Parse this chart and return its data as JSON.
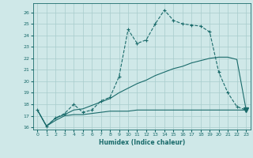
{
  "xlabel": "Humidex (Indice chaleur)",
  "background_color": "#cfe8e8",
  "grid_color": "#a8cccc",
  "line_color": "#1a6b6b",
  "xlim": [
    -0.5,
    23.5
  ],
  "ylim": [
    15.8,
    26.8
  ],
  "yticks": [
    16,
    17,
    18,
    19,
    20,
    21,
    22,
    23,
    24,
    25,
    26
  ],
  "xticks": [
    0,
    1,
    2,
    3,
    4,
    5,
    6,
    7,
    8,
    9,
    10,
    11,
    12,
    13,
    14,
    15,
    16,
    17,
    18,
    19,
    20,
    21,
    22,
    23
  ],
  "series1_x": [
    0,
    1,
    2,
    3,
    4,
    5,
    6,
    7,
    8,
    9,
    10,
    11,
    12,
    13,
    14,
    15,
    16,
    17,
    18,
    19,
    20,
    21,
    22,
    23
  ],
  "series1_y": [
    17.5,
    16.1,
    16.6,
    17.0,
    17.1,
    17.1,
    17.2,
    17.3,
    17.4,
    17.4,
    17.4,
    17.5,
    17.5,
    17.5,
    17.5,
    17.5,
    17.5,
    17.5,
    17.5,
    17.5,
    17.5,
    17.5,
    17.5,
    17.5
  ],
  "series2_x": [
    0,
    1,
    2,
    3,
    4,
    5,
    6,
    7,
    8,
    9,
    10,
    11,
    12,
    13,
    14,
    15,
    16,
    17,
    18,
    19,
    20,
    21,
    22,
    23
  ],
  "series2_y": [
    17.5,
    16.1,
    16.8,
    17.1,
    17.5,
    17.6,
    17.9,
    18.2,
    18.5,
    19.0,
    19.4,
    19.8,
    20.1,
    20.5,
    20.8,
    21.1,
    21.3,
    21.6,
    21.8,
    22.0,
    22.1,
    22.1,
    21.9,
    17.6
  ],
  "series3_x": [
    0,
    1,
    2,
    3,
    4,
    5,
    6,
    7,
    8,
    9,
    10,
    11,
    12,
    13,
    14,
    15,
    16,
    17,
    18,
    19,
    20,
    21,
    22,
    23
  ],
  "series3_y": [
    17.5,
    16.1,
    16.8,
    17.2,
    18.0,
    17.3,
    17.5,
    18.3,
    18.6,
    20.4,
    24.5,
    23.3,
    23.6,
    25.0,
    26.2,
    25.3,
    25.0,
    24.9,
    24.8,
    24.3,
    20.8,
    19.0,
    17.8,
    17.5
  ],
  "triangle_x": 23,
  "triangle_y": 17.5
}
